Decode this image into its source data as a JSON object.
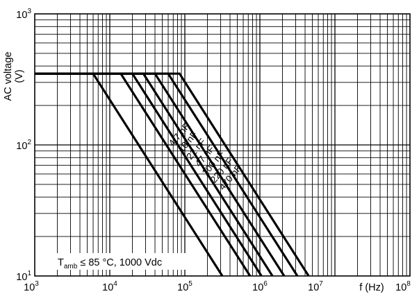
{
  "chart_data": {
    "type": "line",
    "x_scale": "log",
    "y_scale": "log",
    "xlim": [
      1000,
      100000000
    ],
    "ylim": [
      10,
      1000
    ],
    "grid": true,
    "ylabel": "AC voltage",
    "ylabel_unit": "(V)",
    "xlabel": "f (Hz)",
    "x_ticks": [
      {
        "value": 1000,
        "base": "10",
        "exp": "3"
      },
      {
        "value": 10000,
        "base": "10",
        "exp": "4"
      },
      {
        "value": 100000,
        "base": "10",
        "exp": "5"
      },
      {
        "value": 1000000,
        "base": "10",
        "exp": "6"
      },
      {
        "value": 10000000,
        "base": "10",
        "exp": "7"
      },
      {
        "value": 100000000,
        "base": "10",
        "exp": "8"
      }
    ],
    "y_ticks": [
      {
        "value": 10,
        "base": "10",
        "exp": "1"
      },
      {
        "value": 100,
        "base": "10",
        "exp": "2"
      },
      {
        "value": 1000,
        "base": "10",
        "exp": "3"
      }
    ],
    "annotation": {
      "t": "T",
      "sub": "amb",
      "rest": " ≤ 85 °C, 1000 Vdc"
    },
    "series": [
      {
        "name": "4.7 nF",
        "points": [
          [
            1000,
            350
          ],
          [
            85000,
            350
          ],
          [
            4470000,
            10
          ]
        ]
      },
      {
        "name": "10 nF",
        "points": [
          [
            1000,
            350
          ],
          [
            60000,
            350
          ],
          [
            3160000,
            10
          ]
        ]
      },
      {
        "name": "22 nF",
        "points": [
          [
            1000,
            350
          ],
          [
            40000,
            350
          ],
          [
            2110000,
            10
          ]
        ]
      },
      {
        "name": "47 nF",
        "points": [
          [
            1000,
            350
          ],
          [
            28000,
            350
          ],
          [
            1470000,
            10
          ]
        ]
      },
      {
        "name": "100 nF",
        "points": [
          [
            1000,
            350
          ],
          [
            20000,
            350
          ],
          [
            1050000,
            10
          ]
        ]
      },
      {
        "name": "220 nF",
        "points": [
          [
            1000,
            350
          ],
          [
            14000,
            350
          ],
          [
            740000,
            10
          ]
        ]
      },
      {
        "name": "470 nF",
        "points": [
          [
            1000,
            350
          ],
          [
            6000,
            350
          ],
          [
            316000,
            10
          ]
        ]
      }
    ]
  }
}
